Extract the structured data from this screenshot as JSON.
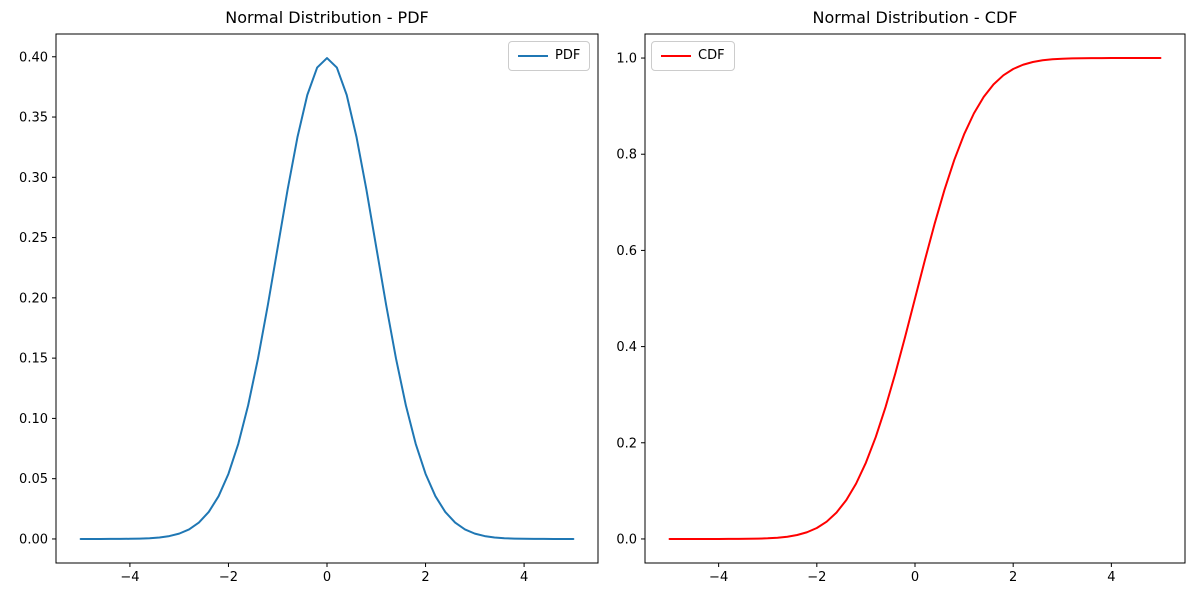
{
  "figure": {
    "background": "#ffffff",
    "text_color": "#000000",
    "spine_color": "#000000"
  },
  "chart_data": [
    {
      "type": "line",
      "title": "Normal Distribution - PDF",
      "xlabel": "",
      "ylabel": "",
      "grid": false,
      "xlim": [
        -5.5,
        5.5
      ],
      "ylim": [
        -0.019947,
        0.418889
      ],
      "xticks": {
        "values": [
          -4,
          -2,
          0,
          2,
          4
        ],
        "labels": [
          "−4",
          "−2",
          "0",
          "2",
          "4"
        ]
      },
      "yticks": {
        "values": [
          0.0,
          0.05,
          0.1,
          0.15,
          0.2,
          0.25,
          0.3,
          0.35,
          0.4
        ],
        "labels": [
          "0.00",
          "0.05",
          "0.10",
          "0.15",
          "0.20",
          "0.25",
          "0.30",
          "0.35",
          "0.40"
        ]
      },
      "legend": {
        "position": "upper-right",
        "entries": [
          {
            "label": "PDF",
            "color": "#1f77b4"
          }
        ]
      },
      "series": [
        {
          "name": "PDF",
          "color": "#1f77b4",
          "x": [
            -5,
            -4.8,
            -4.6,
            -4.4,
            -4.2,
            -4,
            -3.8,
            -3.6,
            -3.4,
            -3.2,
            -3,
            -2.8,
            -2.6,
            -2.4,
            -2.2,
            -2,
            -1.8,
            -1.6,
            -1.4,
            -1.2,
            -1,
            -0.8,
            -0.6,
            -0.4,
            -0.2,
            0,
            0.2,
            0.4,
            0.6,
            0.8,
            1,
            1.2,
            1.4,
            1.6,
            1.8,
            2,
            2.2,
            2.4,
            2.6,
            2.8,
            3,
            3.2,
            3.4,
            3.6,
            3.8,
            4,
            4.2,
            4.4,
            4.6,
            4.8,
            5
          ],
          "y": [
            1e-06,
            4e-06,
            1e-05,
            2.5e-05,
            5.9e-05,
            0.000134,
            0.000292,
            0.000612,
            0.001232,
            0.002384,
            0.004432,
            0.007915,
            0.013583,
            0.022395,
            0.035475,
            0.053991,
            0.07895,
            0.110921,
            0.149727,
            0.194186,
            0.241971,
            0.289692,
            0.333225,
            0.36827,
            0.391043,
            0.398942,
            0.391043,
            0.36827,
            0.333225,
            0.289692,
            0.241971,
            0.194186,
            0.149727,
            0.110921,
            0.07895,
            0.053991,
            0.035475,
            0.022395,
            0.013583,
            0.007915,
            0.004432,
            0.002384,
            0.001232,
            0.000612,
            0.000292,
            0.000134,
            5.9e-05,
            2.5e-05,
            1e-05,
            4e-06,
            1e-06
          ]
        }
      ]
    },
    {
      "type": "line",
      "title": "Normal Distribution - CDF",
      "xlabel": "",
      "ylabel": "",
      "grid": false,
      "xlim": [
        -5.5,
        5.5
      ],
      "ylim": [
        -0.05,
        1.05
      ],
      "xticks": {
        "values": [
          -4,
          -2,
          0,
          2,
          4
        ],
        "labels": [
          "−4",
          "−2",
          "0",
          "2",
          "4"
        ]
      },
      "yticks": {
        "values": [
          0.0,
          0.2,
          0.4,
          0.6,
          0.8,
          1.0
        ],
        "labels": [
          "0.0",
          "0.2",
          "0.4",
          "0.6",
          "0.8",
          "1.0"
        ]
      },
      "legend": {
        "position": "upper-left",
        "entries": [
          {
            "label": "CDF",
            "color": "#ff0000"
          }
        ]
      },
      "series": [
        {
          "name": "CDF",
          "color": "#ff0000",
          "x": [
            -5,
            -4.8,
            -4.6,
            -4.4,
            -4.2,
            -4,
            -3.8,
            -3.6,
            -3.4,
            -3.2,
            -3,
            -2.8,
            -2.6,
            -2.4,
            -2.2,
            -2,
            -1.8,
            -1.6,
            -1.4,
            -1.2,
            -1,
            -0.8,
            -0.6,
            -0.4,
            -0.2,
            0,
            0.2,
            0.4,
            0.6,
            0.8,
            1,
            1.2,
            1.4,
            1.6,
            1.8,
            2,
            2.2,
            2.4,
            2.6,
            2.8,
            3,
            3.2,
            3.4,
            3.6,
            3.8,
            4,
            4.2,
            4.4,
            4.6,
            4.8,
            5
          ],
          "y": [
            0,
            1e-06,
            2e-06,
            5e-06,
            1.3e-05,
            3.2e-05,
            7.2e-05,
            0.000159,
            0.000337,
            0.000687,
            0.00135,
            0.002555,
            0.004661,
            0.008198,
            0.013903,
            0.02275,
            0.03593,
            0.054799,
            0.080757,
            0.11507,
            0.158655,
            0.211855,
            0.274253,
            0.344578,
            0.42074,
            0.5,
            0.57926,
            0.655422,
            0.725747,
            0.788145,
            0.841345,
            0.88493,
            0.919243,
            0.945201,
            0.96407,
            0.97725,
            0.986097,
            0.991802,
            0.995339,
            0.997445,
            0.99865,
            0.999313,
            0.999663,
            0.999841,
            0.999928,
            0.999968,
            0.999987,
            0.999995,
            0.999998,
            0.999999,
            1
          ]
        }
      ]
    }
  ]
}
